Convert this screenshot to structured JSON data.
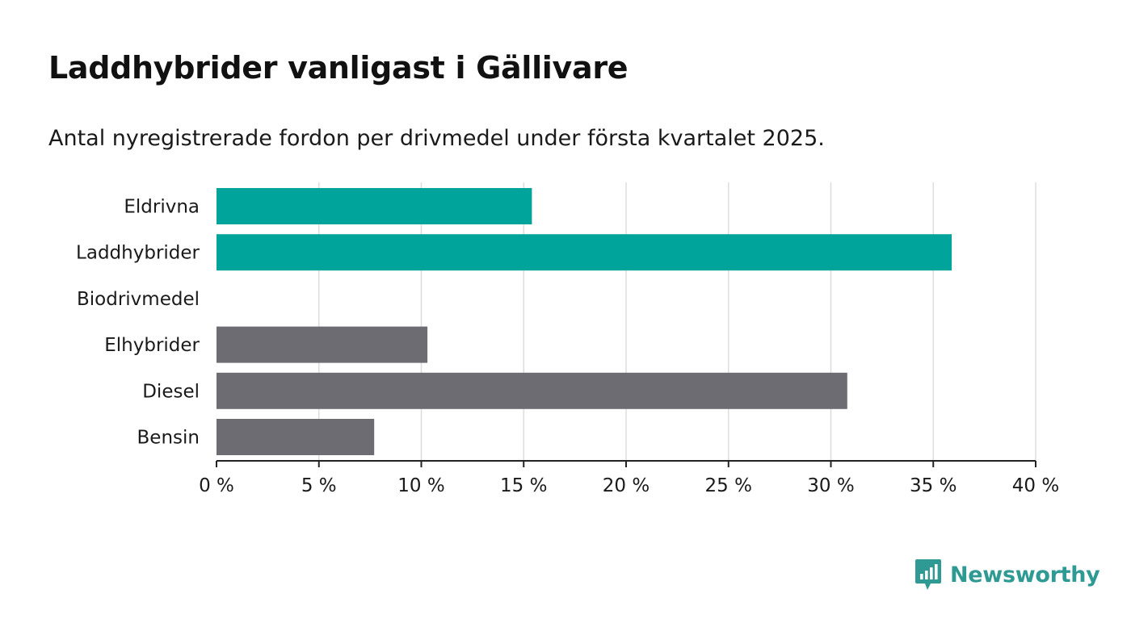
{
  "title": "Laddhybrider vanligast i Gällivare",
  "subtitle": "Antal nyregistrerade fordon per drivmedel under första kvartalet 2025.",
  "brand": {
    "name": "Newsworthy",
    "color": "#2f9a93",
    "icon": "newsworthy-chat-chart-icon"
  },
  "colors": {
    "highlight": "#00a49a",
    "default": "#6d6c73",
    "grid": "#dddddd",
    "axis": "#222222"
  },
  "chart_data": {
    "type": "bar",
    "orientation": "horizontal",
    "categories": [
      "Eldrivna",
      "Laddhybrider",
      "Biodrivmedel",
      "Elhybrider",
      "Diesel",
      "Bensin"
    ],
    "values": [
      15.4,
      35.9,
      0,
      10.3,
      30.8,
      7.7
    ],
    "highlighted": [
      "Eldrivna",
      "Laddhybrider",
      "Biodrivmedel"
    ],
    "xlim": [
      0,
      40
    ],
    "xticks": [
      0,
      5,
      10,
      15,
      20,
      25,
      30,
      35,
      40
    ],
    "tick_suffix": " %",
    "grid": true,
    "xlabel": "",
    "ylabel": ""
  }
}
